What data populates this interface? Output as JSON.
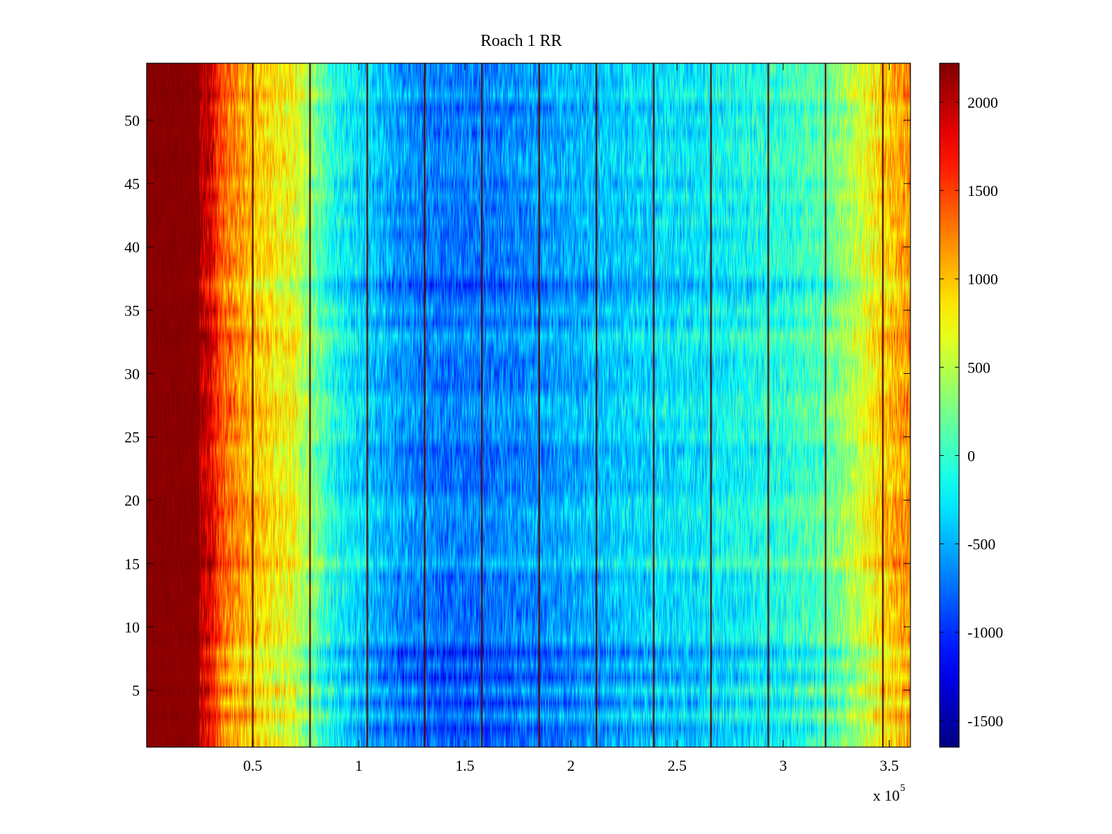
{
  "chart_data": {
    "type": "heatmap",
    "title": "Roach 1 RR",
    "xlabel": "",
    "ylabel": "",
    "x_multiplier_label": "x 10",
    "x_multiplier_exponent": "5",
    "xlim": [
      0.0,
      3.6
    ],
    "ylim": [
      0.5,
      54.5
    ],
    "n_rows": 54,
    "x_ticks": [
      0.5,
      1,
      1.5,
      2,
      2.5,
      3,
      3.5
    ],
    "x_tick_labels": [
      "0.5",
      "1",
      "1.5",
      "2",
      "2.5",
      "3",
      "3.5"
    ],
    "y_ticks": [
      5,
      10,
      15,
      20,
      25,
      30,
      35,
      40,
      45,
      50
    ],
    "y_tick_labels": [
      "5",
      "10",
      "15",
      "20",
      "25",
      "30",
      "35",
      "40",
      "45",
      "50"
    ],
    "colorbar": {
      "colormap": "jet",
      "clim": [
        -1650,
        2220
      ],
      "ticks": [
        -1500,
        -1000,
        -500,
        0,
        500,
        1000,
        1500,
        2000
      ],
      "tick_labels": [
        "-1500",
        "-1000",
        "-500",
        "0",
        "500",
        "1000",
        "1500",
        "2000"
      ]
    },
    "column_profile": {
      "x": [
        0.0,
        0.1,
        0.2,
        0.3,
        0.35,
        0.5,
        0.7,
        0.78,
        0.9,
        1.0,
        1.2,
        1.4,
        1.6,
        1.8,
        2.0,
        2.2,
        2.4,
        2.6,
        2.8,
        3.0,
        3.2,
        3.3,
        3.4,
        3.5,
        3.6
      ],
      "values": [
        2200,
        2200,
        2150,
        1900,
        1400,
        1000,
        700,
        300,
        -150,
        -300,
        -600,
        -700,
        -700,
        -600,
        -500,
        -400,
        -300,
        -250,
        -150,
        -50,
        150,
        400,
        700,
        1000,
        1200
      ]
    },
    "row_offsets": {
      "rows": [
        2,
        4,
        6,
        8,
        12,
        15,
        20,
        24,
        28,
        33,
        37,
        42,
        48,
        52
      ],
      "values": [
        -200,
        -350,
        -250,
        -300,
        0,
        150,
        0,
        -150,
        50,
        150,
        -200,
        0,
        100,
        50
      ]
    },
    "vertical_lines": [
      0.5,
      0.77,
      1.04,
      1.31,
      1.58,
      1.85,
      2.12,
      2.39,
      2.66,
      2.93,
      3.2,
      3.47
    ]
  }
}
